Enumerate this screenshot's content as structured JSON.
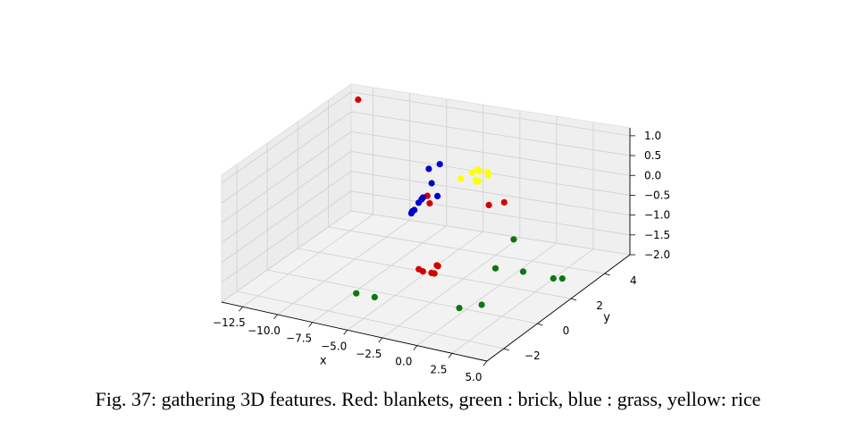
{
  "caption": "Fig. 37: gathering 3D features. Red: blankets, green : brick, blue : grass, yellow: rice",
  "chart_data": {
    "type": "scatter",
    "projection": "3d",
    "grid": true,
    "xlabel": "x",
    "ylabel": "y",
    "zlabel": "",
    "xlim": [
      -14,
      5
    ],
    "ylim": [
      -3,
      5.5
    ],
    "zlim": [
      -2,
      1.2
    ],
    "x_ticks": [
      -12.5,
      -10.0,
      -7.5,
      -5.0,
      -2.5,
      0.0,
      2.5,
      5.0
    ],
    "x_tick_labels": [
      "−12.5",
      "−10.0",
      "−7.5",
      "−5.0",
      "−2.5",
      "0.0",
      "2.5",
      "5.0"
    ],
    "y_ticks": [
      -2,
      0,
      2,
      4
    ],
    "y_tick_labels": [
      "−2",
      "0",
      "2",
      "4"
    ],
    "z_ticks": [
      1.0,
      0.5,
      0.0,
      -0.5,
      -1.0,
      -1.5,
      -2.0
    ],
    "z_tick_labels": [
      "1.0",
      "0.5",
      "0.0",
      "−0.5",
      "−1.0",
      "−1.5",
      "−2.0"
    ],
    "series": [
      {
        "name": "blankets",
        "color": "#d40000",
        "points": [
          [
            -13.0,
            5.0,
            1.0
          ],
          [
            -1.6,
            -1.0,
            1.05
          ],
          [
            -1.2,
            -1.2,
            0.95
          ],
          [
            1.0,
            0.5,
            0.55
          ],
          [
            1.5,
            1.0,
            0.5
          ],
          [
            -0.5,
            -1.3,
            -0.55
          ],
          [
            -4.7,
            2.0,
            -2.0
          ],
          [
            -5.0,
            2.6,
            -2.0
          ],
          [
            -4.5,
            2.0,
            -2.0
          ],
          [
            -5.3,
            2.0,
            -2.0
          ],
          [
            -5.7,
            2.1,
            -2.0
          ]
        ]
      },
      {
        "name": "brick",
        "color": "#0a780a",
        "points": [
          [
            -7.3,
            -0.4,
            -2.0
          ],
          [
            -6.0,
            -0.4,
            -2.0
          ],
          [
            -2.7,
            5.3,
            -2.0
          ],
          [
            -1.5,
            3.1,
            -2.0
          ],
          [
            -0.5,
            0.0,
            -2.0
          ],
          [
            0.5,
            0.5,
            -2.0
          ],
          [
            0.3,
            3.2,
            -2.0
          ],
          [
            2.5,
            3.1,
            -2.0
          ],
          [
            3.0,
            3.2,
            -2.0
          ]
        ]
      },
      {
        "name": "grass",
        "color": "#0000cc",
        "points": [
          [
            -6.7,
            3.0,
            -0.65
          ],
          [
            -6.5,
            3.0,
            -0.55
          ],
          [
            -7.2,
            3.0,
            -0.95
          ],
          [
            -7.0,
            3.0,
            -0.85
          ],
          [
            -6.7,
            2.6,
            -0.75
          ],
          [
            -6.4,
            3.0,
            -0.5
          ],
          [
            -5.4,
            3.0,
            -0.4
          ],
          [
            -5.8,
            3.0,
            -0.1
          ],
          [
            -6.0,
            3.0,
            0.25
          ],
          [
            -5.9,
            3.6,
            0.2
          ]
        ]
      },
      {
        "name": "rice",
        "color": "#ffff00",
        "points": [
          [
            -3.0,
            3.0,
            0.35
          ],
          [
            -2.6,
            3.0,
            0.45
          ],
          [
            -2.2,
            2.5,
            0.35
          ],
          [
            -2.0,
            2.5,
            0.35
          ],
          [
            -1.9,
            2.3,
            0.4
          ],
          [
            -1.7,
            2.8,
            0.5
          ],
          [
            -3.0,
            2.3,
            0.4
          ],
          [
            -1.9,
            3.0,
            0.35
          ],
          [
            -2.4,
            2.9,
            0.45
          ]
        ]
      }
    ]
  }
}
